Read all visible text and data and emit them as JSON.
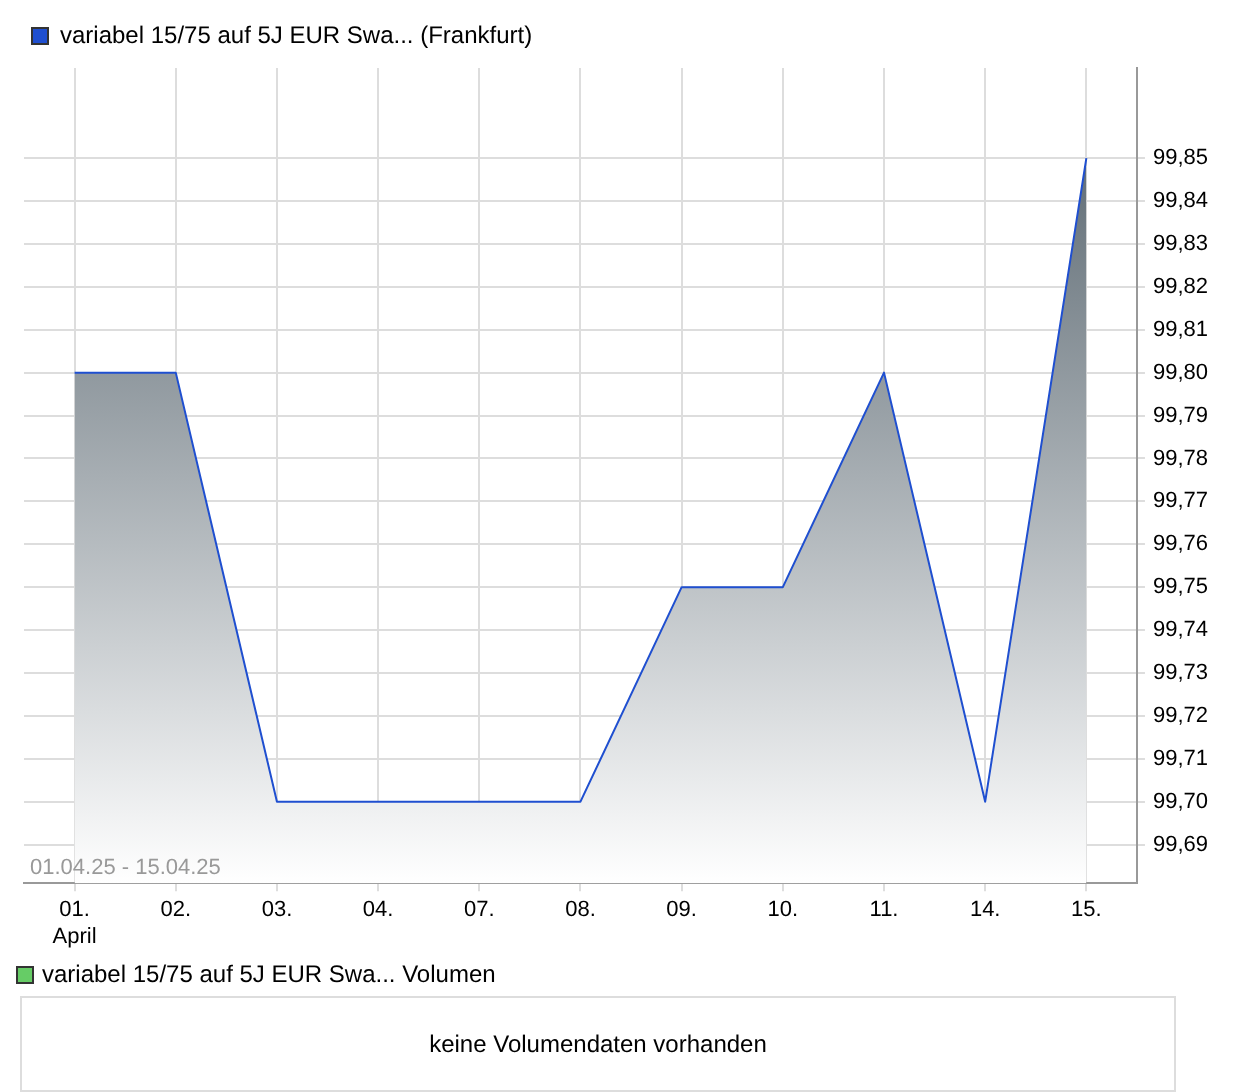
{
  "chart_data": [
    {
      "type": "area",
      "categories": [
        "01. April",
        "02.",
        "03.",
        "04.",
        "07.",
        "08.",
        "09.",
        "10.",
        "11.",
        "14.",
        "15."
      ],
      "series": [
        {
          "name": "variabel 15/75 auf 5J EUR Swa... (Frankfurt)",
          "color": "#1f4fd0",
          "values": [
            99.8,
            99.8,
            99.7,
            99.7,
            99.7,
            99.7,
            99.75,
            99.75,
            99.8,
            99.7,
            99.85
          ]
        }
      ],
      "ylim": [
        99.681,
        99.871
      ],
      "yticks": [
        {
          "value": 99.69,
          "label": "99,69"
        },
        {
          "value": 99.7,
          "label": "99,70"
        },
        {
          "value": 99.71,
          "label": "99,71"
        },
        {
          "value": 99.72,
          "label": "99,72"
        },
        {
          "value": 99.73,
          "label": "99,73"
        },
        {
          "value": 99.74,
          "label": "99,74"
        },
        {
          "value": 99.75,
          "label": "99,75"
        },
        {
          "value": 99.76,
          "label": "99,76"
        },
        {
          "value": 99.77,
          "label": "99,77"
        },
        {
          "value": 99.78,
          "label": "99,78"
        },
        {
          "value": 99.79,
          "label": "99,79"
        },
        {
          "value": 99.8,
          "label": "99,80"
        },
        {
          "value": 99.81,
          "label": "99,81"
        },
        {
          "value": 99.82,
          "label": "99,82"
        },
        {
          "value": 99.83,
          "label": "99,83"
        },
        {
          "value": 99.84,
          "label": "99,84"
        },
        {
          "value": 99.85,
          "label": "99,85"
        }
      ],
      "grid": true,
      "legend": "top left",
      "annotations": [
        "01.04.25 - 15.04.25"
      ]
    },
    {
      "type": "other",
      "series": [
        {
          "name": "variabel 15/75 auf 5J EUR Swa... Volumen",
          "color": "#66cc66"
        }
      ],
      "legend": "top left",
      "annotations": [
        "keine Volumendaten vorhanden"
      ]
    }
  ]
}
